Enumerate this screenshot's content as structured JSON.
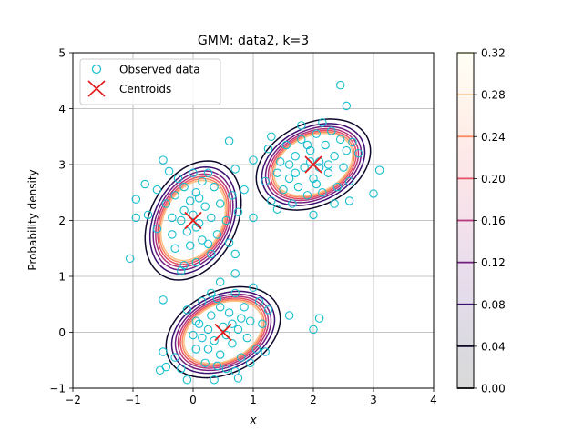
{
  "chart_data": {
    "type": "scatter",
    "title": "GMM: data2, k=3",
    "xlabel": "x",
    "ylabel": "Probability density",
    "xlim": [
      -2,
      4
    ],
    "ylim": [
      -1,
      5
    ],
    "x_ticks": [
      -2,
      -1,
      0,
      1,
      2,
      3,
      4
    ],
    "y_ticks": [
      -1,
      0,
      1,
      2,
      3,
      4,
      5
    ],
    "grid": true,
    "legend_position": "top-left",
    "legend": [
      {
        "label": "Observed data",
        "marker": "circle",
        "color": "#17becf"
      },
      {
        "label": "Centroids",
        "marker": "x",
        "color": "#e41a1c"
      }
    ],
    "centroids": [
      {
        "x": 0.0,
        "y": 2.0
      },
      {
        "x": 2.0,
        "y": 3.0
      },
      {
        "x": 0.5,
        "y": 0.0
      }
    ],
    "contours": {
      "levels": [
        0.04,
        0.08,
        0.12,
        0.16,
        0.2,
        0.24,
        0.28
      ],
      "colors": [
        "#0d0829",
        "#3b0f70",
        "#721f81",
        "#b5367a",
        "#e55064",
        "#fb8761",
        "#fec287"
      ],
      "components": [
        {
          "mean": [
            0.0,
            2.0
          ],
          "sigma": [
            0.3,
            0.4
          ],
          "rho": 0.3
        },
        {
          "mean": [
            2.0,
            3.0
          ],
          "sigma": [
            0.35,
            0.3
          ],
          "rho": 0.3
        },
        {
          "mean": [
            0.5,
            0.0
          ],
          "sigma": [
            0.35,
            0.3
          ],
          "rho": 0.3
        }
      ]
    },
    "colorbar": {
      "ticks": [
        "0.00",
        "0.04",
        "0.08",
        "0.12",
        "0.16",
        "0.20",
        "0.24",
        "0.28",
        "0.32"
      ],
      "range": [
        0.0,
        0.32
      ]
    },
    "points": [
      [
        -1.05,
        1.32
      ],
      [
        -0.95,
        2.05
      ],
      [
        -0.95,
        2.38
      ],
      [
        -0.8,
        2.65
      ],
      [
        -0.75,
        2.1
      ],
      [
        -0.6,
        2.55
      ],
      [
        -0.6,
        1.85
      ],
      [
        -0.5,
        3.08
      ],
      [
        -0.45,
        2.3
      ],
      [
        -0.4,
        2.88
      ],
      [
        -0.35,
        1.75
      ],
      [
        -0.3,
        2.45
      ],
      [
        -0.3,
        1.5
      ],
      [
        -0.25,
        2.75
      ],
      [
        -0.2,
        2.0
      ],
      [
        -0.2,
        1.1
      ],
      [
        -0.15,
        2.6
      ],
      [
        -0.1,
        1.8
      ],
      [
        -0.05,
        2.35
      ],
      [
        -0.05,
        1.55
      ],
      [
        0.0,
        2.1
      ],
      [
        0.0,
        2.85
      ],
      [
        0.05,
        1.25
      ],
      [
        0.05,
        2.5
      ],
      [
        0.1,
        1.95
      ],
      [
        0.15,
        2.7
      ],
      [
        0.15,
        1.65
      ],
      [
        0.2,
        2.25
      ],
      [
        0.25,
        2.85
      ],
      [
        0.3,
        1.4
      ],
      [
        0.3,
        2.05
      ],
      [
        0.35,
        2.6
      ],
      [
        0.4,
        1.75
      ],
      [
        0.45,
        2.3
      ],
      [
        0.55,
        2.0
      ],
      [
        0.6,
        1.6
      ],
      [
        0.65,
        2.45
      ],
      [
        0.7,
        2.92
      ],
      [
        0.7,
        1.4
      ],
      [
        0.75,
        2.15
      ],
      [
        0.85,
        2.55
      ],
      [
        0.6,
        3.42
      ],
      [
        0.7,
        1.05
      ],
      [
        0.45,
        0.9
      ],
      [
        -0.15,
        1.2
      ],
      [
        -0.15,
        2.18
      ],
      [
        0.05,
        1.88
      ],
      [
        -0.35,
        2.05
      ],
      [
        0.25,
        1.58
      ],
      [
        0.1,
        2.4
      ],
      [
        1.0,
        2.05
      ],
      [
        1.0,
        3.08
      ],
      [
        1.2,
        2.7
      ],
      [
        1.25,
        3.28
      ],
      [
        1.3,
        2.35
      ],
      [
        1.3,
        3.5
      ],
      [
        1.4,
        2.85
      ],
      [
        1.45,
        3.05
      ],
      [
        1.5,
        2.55
      ],
      [
        1.55,
        3.35
      ],
      [
        1.6,
        2.75
      ],
      [
        1.65,
        2.3
      ],
      [
        1.7,
        3.15
      ],
      [
        1.75,
        2.6
      ],
      [
        1.8,
        3.45
      ],
      [
        1.85,
        2.95
      ],
      [
        1.9,
        2.45
      ],
      [
        1.95,
        3.25
      ],
      [
        2.0,
        2.75
      ],
      [
        2.05,
        3.55
      ],
      [
        2.1,
        3.05
      ],
      [
        2.15,
        2.5
      ],
      [
        2.2,
        3.35
      ],
      [
        2.25,
        2.85
      ],
      [
        2.3,
        3.6
      ],
      [
        2.35,
        3.15
      ],
      [
        2.4,
        2.6
      ],
      [
        2.45,
        3.45
      ],
      [
        2.5,
        2.95
      ],
      [
        2.55,
        3.25
      ],
      [
        2.6,
        2.7
      ],
      [
        2.65,
        3.4
      ],
      [
        2.75,
        3.2
      ],
      [
        2.45,
        4.42
      ],
      [
        2.55,
        4.05
      ],
      [
        3.0,
        2.48
      ],
      [
        3.1,
        2.9
      ],
      [
        2.6,
        2.35
      ],
      [
        2.0,
        2.1
      ],
      [
        1.4,
        2.2
      ],
      [
        1.95,
        3.05
      ],
      [
        2.1,
        2.95
      ],
      [
        1.8,
        3.7
      ],
      [
        2.25,
        3.0
      ],
      [
        1.7,
        2.85
      ],
      [
        2.35,
        2.3
      ],
      [
        2.15,
        3.75
      ],
      [
        1.6,
        3.0
      ],
      [
        2.05,
        2.65
      ],
      [
        1.9,
        3.35
      ],
      [
        -0.5,
        0.58
      ],
      [
        -0.5,
        -0.35
      ],
      [
        -0.45,
        -0.62
      ],
      [
        -0.55,
        -0.68
      ],
      [
        -0.3,
        -0.45
      ],
      [
        -0.2,
        -0.65
      ],
      [
        -0.1,
        0.4
      ],
      [
        0.0,
        -0.05
      ],
      [
        0.05,
        -0.3
      ],
      [
        0.1,
        0.15
      ],
      [
        0.15,
        0.55
      ],
      [
        0.2,
        -0.55
      ],
      [
        0.25,
        0.05
      ],
      [
        0.3,
        0.3
      ],
      [
        0.35,
        -0.15
      ],
      [
        0.35,
        -0.85
      ],
      [
        0.4,
        0.6
      ],
      [
        0.45,
        -0.4
      ],
      [
        0.5,
        0.1
      ],
      [
        0.55,
        -0.65
      ],
      [
        0.6,
        0.35
      ],
      [
        0.65,
        -0.2
      ],
      [
        0.7,
        0.7
      ],
      [
        0.75,
        0.05
      ],
      [
        0.8,
        -0.45
      ],
      [
        0.85,
        0.45
      ],
      [
        0.9,
        -0.1
      ],
      [
        0.95,
        0.2
      ],
      [
        1.0,
        0.8
      ],
      [
        1.05,
        -0.3
      ],
      [
        1.1,
        0.55
      ],
      [
        1.15,
        0.15
      ],
      [
        1.2,
        -0.35
      ],
      [
        1.25,
        0.4
      ],
      [
        0.75,
        -0.82
      ],
      [
        0.7,
        -0.7
      ],
      [
        1.6,
        0.3
      ],
      [
        2.0,
        0.05
      ],
      [
        2.1,
        0.25
      ],
      [
        -0.1,
        -0.85
      ],
      [
        0.05,
        0.2
      ],
      [
        0.45,
        0.45
      ],
      [
        0.55,
        -0.05
      ],
      [
        0.25,
        -0.3
      ],
      [
        0.65,
        0.15
      ],
      [
        0.4,
        -0.6
      ],
      [
        0.8,
        0.25
      ],
      [
        0.15,
        -0.1
      ],
      [
        0.95,
        -0.55
      ],
      [
        0.3,
        0.7
      ]
    ]
  }
}
